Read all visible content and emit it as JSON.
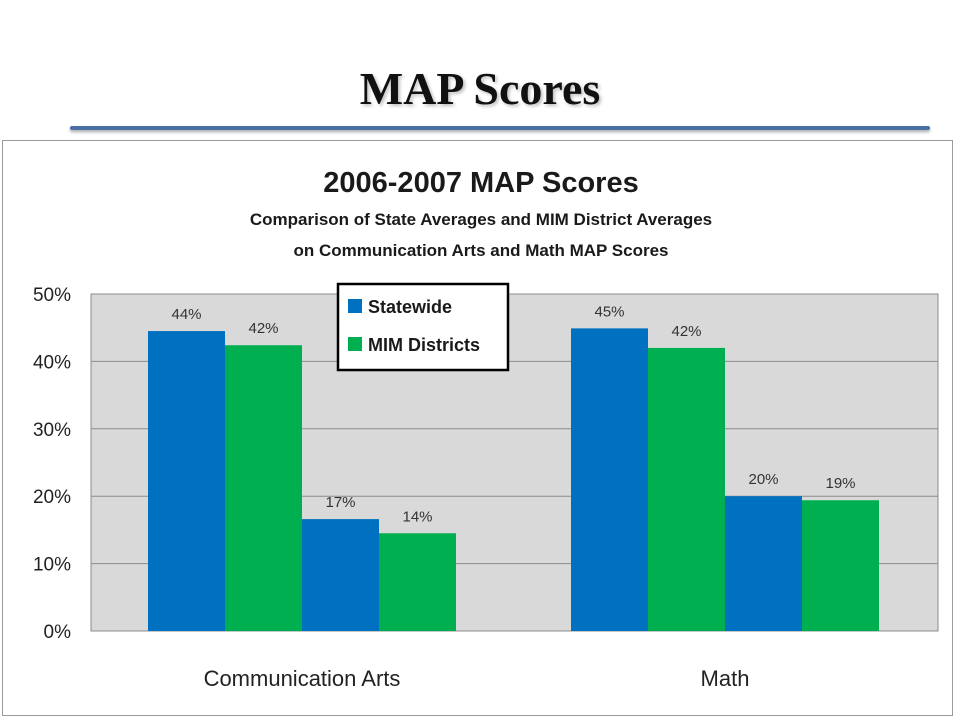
{
  "slide": {
    "title": "MAP Scores"
  },
  "chart_data": {
    "type": "bar",
    "title": "2006-2007 MAP Scores",
    "subtitle_lines": [
      "Comparison of State Averages and MIM District Averages",
      "on Communication Arts and Math MAP Scores"
    ],
    "xlabel": "",
    "ylabel": "",
    "ylim": [
      0,
      50
    ],
    "yticks": [
      0,
      10,
      20,
      30,
      40,
      50
    ],
    "ytick_labels": [
      "0%",
      "10%",
      "20%",
      "30%",
      "40%",
      "50%"
    ],
    "groups": [
      "Communication Arts",
      "Math"
    ],
    "grid": true,
    "legend_position": "top-center",
    "colors": {
      "plot_background": "#d9d9d9",
      "gridline": "#8c8c8c",
      "Statewide": "#0070c0",
      "MIM Districts": "#00b050"
    },
    "series": [
      {
        "name": "Statewide",
        "legend": true,
        "values": [
          44.5,
          44.9
        ],
        "labels": [
          "44%",
          "45%"
        ]
      },
      {
        "name": "MIM Districts",
        "legend": true,
        "values": [
          42.4,
          42.0
        ],
        "labels": [
          "42%",
          "42%"
        ]
      },
      {
        "name": "Statewide",
        "legend": false,
        "values": [
          16.6,
          20.0
        ],
        "labels": [
          "17%",
          "20%"
        ]
      },
      {
        "name": "MIM Districts",
        "legend": false,
        "values": [
          14.5,
          19.4
        ],
        "labels": [
          "14%",
          "19%"
        ]
      }
    ]
  }
}
